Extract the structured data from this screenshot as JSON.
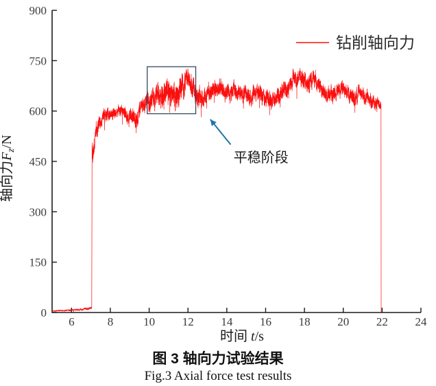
{
  "figure": {
    "caption_cn": "图 3  轴向力试验结果",
    "caption_en": "Fig.3  Axial force test results"
  },
  "chart_data": {
    "type": "line",
    "title": "",
    "xlabel": "时间 t/s",
    "xlabel_rich": {
      "prefix": "时间 ",
      "var": "t",
      "unit": "/s"
    },
    "ylabel": "轴向力F_z/N",
    "ylabel_rich": {
      "prefix": "轴向力",
      "var": "F",
      "sub": "z",
      "unit": "/N"
    },
    "xlim": [
      5,
      24
    ],
    "ylim": [
      0,
      900
    ],
    "x_ticks": [
      6,
      8,
      10,
      12,
      14,
      16,
      18,
      20,
      22,
      24
    ],
    "y_ticks": [
      0,
      150,
      300,
      450,
      600,
      750,
      900
    ],
    "grid": false,
    "axis_color": "#1a1a1a",
    "tick_label_color": "#3a3a3a",
    "legend": {
      "position": "top-right",
      "entries": [
        {
          "label": "钻削轴向力",
          "color": "#fa0f0f"
        }
      ]
    },
    "series": [
      {
        "name": "钻削轴向力",
        "color": "#fa0f0f",
        "description": "Noisy drilling axial-force signal: near 0 N from 5-7 s, step up at t≈7.05 s, fluctuates ~580-730 N, drops to 0 at t≈21.95 s",
        "noise_seed": 7,
        "profile_format": [
          "t_s",
          "mean_N",
          "half_amplitude_N"
        ],
        "profile": [
          [
            5.0,
            4,
            2
          ],
          [
            6.0,
            7,
            3
          ],
          [
            6.6,
            10,
            4
          ],
          [
            7.04,
            14,
            5
          ],
          [
            7.06,
            470,
            40
          ],
          [
            7.25,
            545,
            32
          ],
          [
            7.6,
            578,
            26
          ],
          [
            8.0,
            592,
            24
          ],
          [
            8.45,
            603,
            22
          ],
          [
            8.8,
            590,
            24
          ],
          [
            9.1,
            580,
            26
          ],
          [
            9.35,
            574,
            34
          ],
          [
            9.6,
            606,
            30
          ],
          [
            9.9,
            636,
            32
          ],
          [
            10.15,
            628,
            40
          ],
          [
            10.45,
            652,
            44
          ],
          [
            10.75,
            638,
            50
          ],
          [
            11.05,
            662,
            46
          ],
          [
            11.35,
            648,
            54
          ],
          [
            11.65,
            668,
            48
          ],
          [
            11.95,
            696,
            38
          ],
          [
            12.2,
            672,
            42
          ],
          [
            12.45,
            652,
            40
          ],
          [
            12.8,
            642,
            34
          ],
          [
            13.2,
            656,
            32
          ],
          [
            13.6,
            668,
            32
          ],
          [
            14.0,
            652,
            30
          ],
          [
            14.4,
            660,
            32
          ],
          [
            14.8,
            654,
            30
          ],
          [
            15.2,
            642,
            32
          ],
          [
            15.6,
            656,
            32
          ],
          [
            16.0,
            640,
            34
          ],
          [
            16.35,
            632,
            34
          ],
          [
            16.7,
            650,
            32
          ],
          [
            17.1,
            668,
            34
          ],
          [
            17.45,
            696,
            32
          ],
          [
            17.8,
            704,
            30
          ],
          [
            18.1,
            678,
            38
          ],
          [
            18.5,
            696,
            32
          ],
          [
            18.9,
            664,
            32
          ],
          [
            19.3,
            648,
            30
          ],
          [
            19.7,
            658,
            30
          ],
          [
            20.1,
            668,
            30
          ],
          [
            20.5,
            642,
            32
          ],
          [
            20.85,
            652,
            30
          ],
          [
            21.2,
            644,
            28
          ],
          [
            21.55,
            630,
            26
          ],
          [
            21.93,
            618,
            18
          ]
        ],
        "cut_start_s": 7.05,
        "cut_end_s": 21.95
      }
    ],
    "annotations": {
      "box": {
        "x": [
          9.9,
          12.4
        ],
        "y": [
          592,
          732
        ],
        "color": "#34495e"
      },
      "arrow": {
        "from": [
          14.2,
          500
        ],
        "to": [
          13.15,
          575
        ],
        "color": "#1f74a8"
      },
      "label": {
        "text": "平稳阶段",
        "at": [
          14.35,
          448
        ],
        "color": "#1a1a1a"
      }
    }
  }
}
